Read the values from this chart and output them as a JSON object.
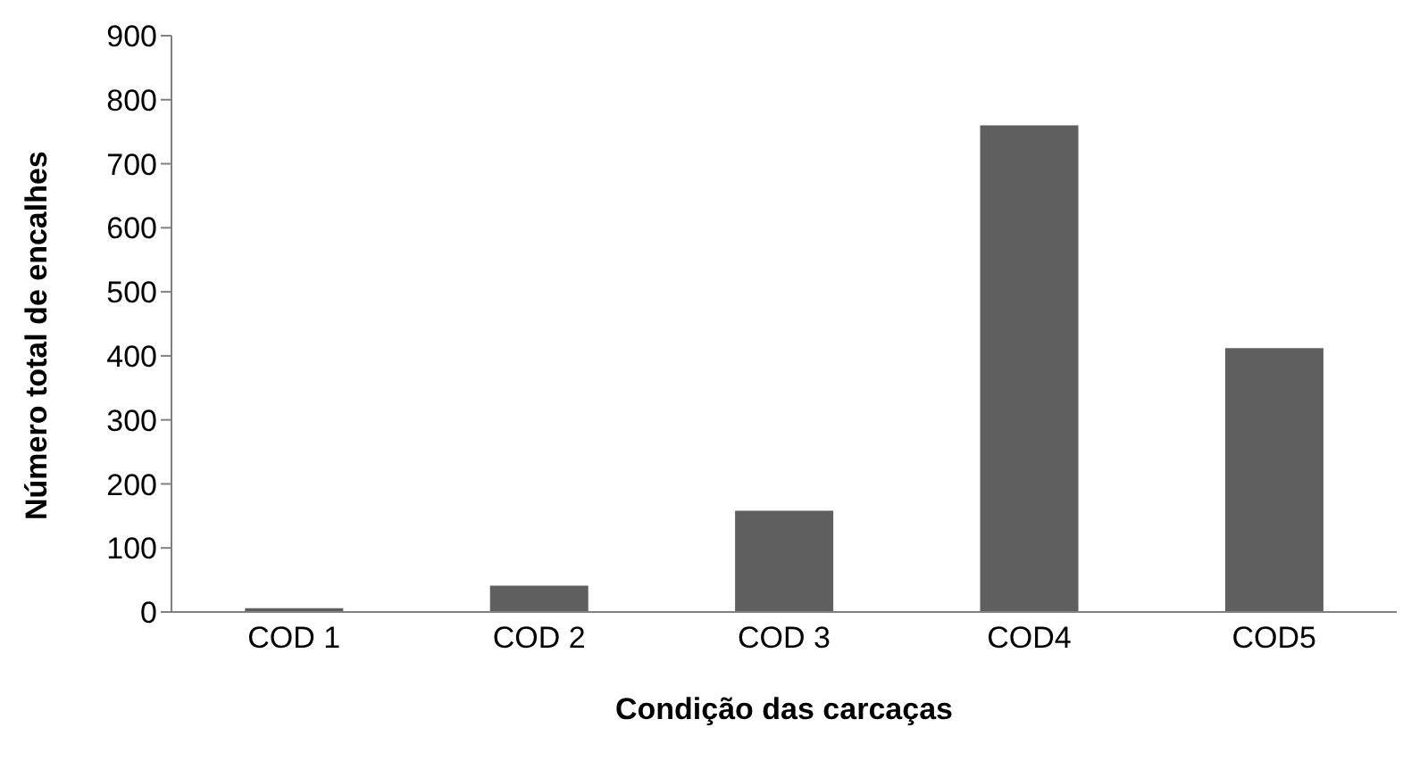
{
  "chart_data": {
    "type": "bar",
    "xlabel": "Condição das carcaças",
    "ylabel": "Número total de encalhes",
    "categories": [
      "COD 1",
      "COD 2",
      "COD 3",
      "COD4",
      "COD5"
    ],
    "values": [
      6,
      41,
      158,
      760,
      412
    ],
    "color": "#5f5f5f",
    "ylim": [
      0,
      900
    ],
    "yticks": [
      0,
      100,
      200,
      300,
      400,
      500,
      600,
      700,
      800,
      900
    ],
    "grid": false,
    "legend": false
  }
}
